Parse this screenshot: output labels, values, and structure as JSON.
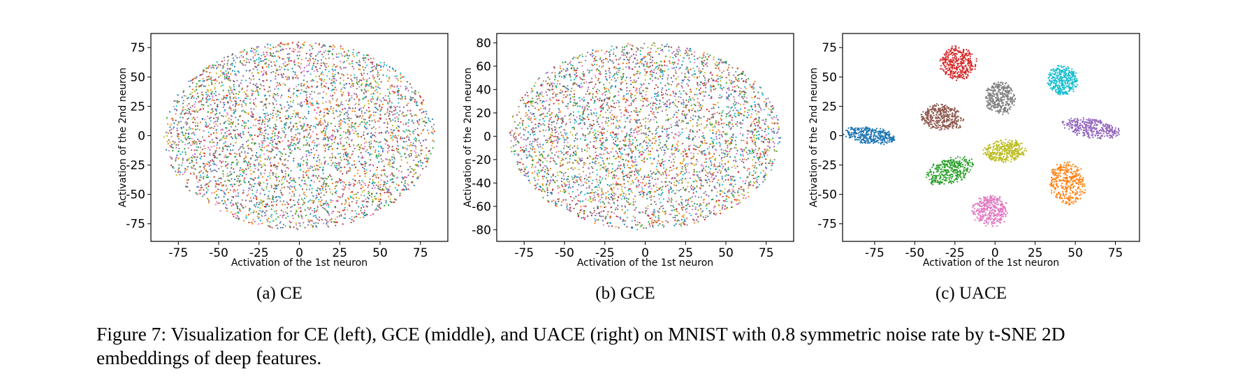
{
  "figure": {
    "caption": "Figure 7: Visualization for CE (left), GCE (middle), and UACE (right) on MNIST with 0.8 symmetric noise rate by t-SNE 2D embeddings of deep features."
  },
  "palette": [
    "#1f77b4",
    "#ff7f0e",
    "#2ca02c",
    "#d62728",
    "#9467bd",
    "#8c564b",
    "#e377c2",
    "#7f7f7f",
    "#bcbd22",
    "#17becf"
  ],
  "chart_data": [
    {
      "type": "scatter",
      "subcaption": "(a) CE",
      "xlabel": "Activation of the 1st neuron",
      "ylabel": "Activation of the 2nd neuron",
      "xlim": [
        -92,
        92
      ],
      "ylim": [
        -90,
        87
      ],
      "xticks": [
        -75,
        -50,
        -25,
        0,
        25,
        50,
        75
      ],
      "yticks": [
        -75,
        -50,
        -25,
        0,
        25,
        50,
        75
      ],
      "xtick_labels": [
        "-75",
        "-50",
        "-25",
        "0",
        "25",
        "50",
        "75"
      ],
      "ytick_labels": [
        "-75",
        "-50",
        "-25",
        "0",
        "25",
        "50",
        "75"
      ],
      "distribution": "mixed",
      "ellipse": {
        "cx": 0,
        "cy": 0,
        "rx": 84,
        "ry": 80
      },
      "points_per_class": 400,
      "classes": [
        0,
        1,
        2,
        3,
        4,
        5,
        6,
        7,
        8,
        9
      ]
    },
    {
      "type": "scatter",
      "subcaption": "(b) GCE",
      "xlabel": "Activation of the 1st neuron",
      "ylabel": "Activation of the 2nd neuron",
      "xlim": [
        -92,
        92
      ],
      "ylim": [
        -90,
        88
      ],
      "xticks": [
        -75,
        -50,
        -25,
        0,
        25,
        50,
        75
      ],
      "yticks": [
        -80,
        -60,
        -40,
        -20,
        0,
        20,
        40,
        60,
        80
      ],
      "xtick_labels": [
        "-75",
        "-50",
        "-25",
        "0",
        "25",
        "50",
        "75"
      ],
      "ytick_labels": [
        "-80",
        "-60",
        "-40",
        "-20",
        "0",
        "20",
        "40",
        "60",
        "80"
      ],
      "distribution": "mixed",
      "ellipse": {
        "cx": 0,
        "cy": 0,
        "rx": 84,
        "ry": 80
      },
      "points_per_class": 400,
      "classes": [
        0,
        1,
        2,
        3,
        4,
        5,
        6,
        7,
        8,
        9
      ]
    },
    {
      "type": "scatter",
      "subcaption": "(c) UACE",
      "xlabel": "Activation of the 1st neuron",
      "ylabel": "Activation of the 2nd neuron",
      "xlim": [
        -95,
        90
      ],
      "ylim": [
        -90,
        87
      ],
      "xticks": [
        -75,
        -50,
        -25,
        0,
        25,
        50,
        75
      ],
      "yticks": [
        -75,
        -50,
        -25,
        0,
        25,
        50,
        75
      ],
      "xtick_labels": [
        "-75",
        "-50",
        "-25",
        "0",
        "25",
        "50",
        "75"
      ],
      "ytick_labels": [
        "-75",
        "-50",
        "-25",
        "0",
        "25",
        "50",
        "75"
      ],
      "distribution": "clustered",
      "points_per_class": 350,
      "clusters": [
        {
          "class": 0,
          "cx": -78,
          "cy": 0,
          "rx": 16,
          "ry": 7,
          "tilt": -10
        },
        {
          "class": 1,
          "cx": 45,
          "cy": -40,
          "rx": 11,
          "ry": 18,
          "tilt": 5
        },
        {
          "class": 2,
          "cx": -28,
          "cy": -30,
          "rx": 16,
          "ry": 10,
          "tilt": 30
        },
        {
          "class": 3,
          "cx": -23,
          "cy": 62,
          "rx": 11,
          "ry": 14,
          "tilt": 0
        },
        {
          "class": 4,
          "cx": 60,
          "cy": 6,
          "rx": 18,
          "ry": 8,
          "tilt": -15
        },
        {
          "class": 5,
          "cx": -33,
          "cy": 15,
          "rx": 13,
          "ry": 11,
          "tilt": -20
        },
        {
          "class": 6,
          "cx": -3,
          "cy": -64,
          "rx": 11,
          "ry": 13,
          "tilt": 0
        },
        {
          "class": 7,
          "cx": 3,
          "cy": 32,
          "rx": 9,
          "ry": 14,
          "tilt": 0
        },
        {
          "class": 8,
          "cx": 6,
          "cy": -13,
          "rx": 13,
          "ry": 9,
          "tilt": 10
        },
        {
          "class": 9,
          "cx": 42,
          "cy": 47,
          "rx": 9,
          "ry": 13,
          "tilt": 0
        }
      ]
    }
  ]
}
